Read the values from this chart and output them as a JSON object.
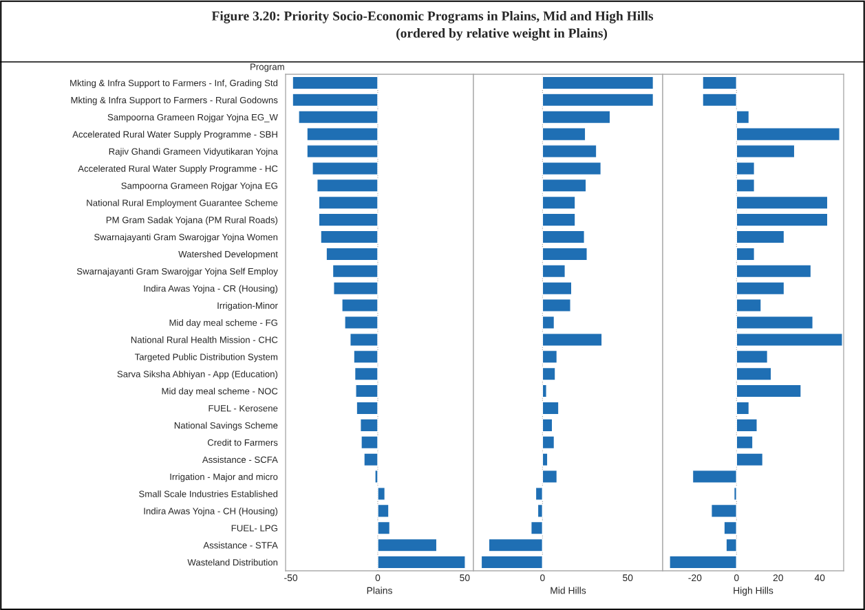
{
  "chart_data": [
    {
      "type": "bar",
      "orientation": "horizontal",
      "title": "Figure 3.20: Priority Socio-Economic Programs in Plains, Mid and High Hills",
      "subtitle": "(ordered by relative weight in Plains)",
      "ylabel": "Program",
      "xlabel": "Plains",
      "categories": [
        "Mkting & Infra Support to Farmers - Inf, Grading Std",
        "Mkting & Infra Support to Farmers - Rural Godowns",
        "Sampoorna Grameen Rojgar Yojna EG_W",
        "Accelerated Rural Water Supply Programme - SBH",
        "Rajiv Ghandi Grameen Vidyutikaran Yojna",
        "Accelerated Rural Water Supply Programme - HC",
        "Sampoorna Grameen Rojgar Yojna EG",
        "National Rural Employment Guarantee Scheme",
        "PM Gram Sadak Yojana (PM Rural Roads)",
        "Swarnajayanti Gram Swarojgar Yojna Women",
        "Watershed Development",
        "Swarnajayanti Gram Swarojgar Yojna Self Employ",
        "Indira Awas Yojna - CR (Housing)",
        "Irrigation-Minor",
        "Mid day meal scheme - FG",
        "National Rural Health Mission - CHC",
        "Targeted Public Distribution System",
        "Sarva Siksha Abhiyan - App (Education)",
        "Mid day meal scheme - NOC",
        "FUEL - Kerosene",
        "National Savings Scheme",
        "Credit to Farmers",
        "Assistance - SCFA",
        "Irrigation - Major and micro",
        "Small Scale Industries Established",
        "Indira Awas Yojna - CH (Housing)",
        "FUEL- LPG",
        "Assistance - STFA",
        "Wasteland Distribution"
      ],
      "values": [
        -49,
        -49,
        -45.5,
        -40.7,
        -40.7,
        -37.6,
        -34.9,
        -33.9,
        -33.9,
        -32.8,
        -29.6,
        -25.9,
        -25.4,
        -20.6,
        -19,
        -15.9,
        -13.8,
        -13.2,
        -12.7,
        -12.2,
        -10,
        -9.5,
        -7.9,
        -1.6,
        4.1,
        6.3,
        6.9,
        33.9,
        50.3
      ],
      "color": "#1f6fb4",
      "xlim": [
        -53,
        55
      ],
      "xticks": [
        -50,
        0,
        50
      ],
      "ref_lines": [
        {
          "axis": "x",
          "value": 0,
          "line_style": "dotted"
        }
      ]
    },
    {
      "type": "bar",
      "orientation": "horizontal",
      "xlabel": "Mid Hills",
      "tick_labels": "x",
      "categories": [
        null,
        null,
        null,
        null,
        null,
        null,
        null,
        null,
        null,
        null,
        null,
        null,
        null,
        null,
        null,
        null,
        null,
        null,
        null,
        null,
        null,
        null,
        null,
        null,
        null,
        null,
        null,
        null,
        null
      ],
      "values": [
        65,
        65,
        39.7,
        25.2,
        31.7,
        34.3,
        25.6,
        19.2,
        19.2,
        24.6,
        26.2,
        13.3,
        17.1,
        16.5,
        6.9,
        34.9,
        8.5,
        7.5,
        2.4,
        9.5,
        5.8,
        6.9,
        3,
        8.5,
        -4,
        -2.8,
        -6.7,
        -31.5,
        -35.9
      ],
      "color": "#1f6fb4",
      "xlim": [
        -40.5,
        70.5
      ],
      "xticks": [
        0,
        50
      ],
      "ref_lines": [
        {
          "axis": "x",
          "value": 0,
          "line_style": "dotted"
        }
      ]
    },
    {
      "type": "bar",
      "orientation": "horizontal",
      "xlabel": "High Hills",
      "tick_labels": "x",
      "categories": [
        null,
        null,
        null,
        null,
        null,
        null,
        null,
        null,
        null,
        null,
        null,
        null,
        null,
        null,
        null,
        null,
        null,
        null,
        null,
        null,
        null,
        null,
        null,
        null,
        null,
        null,
        null,
        null,
        null
      ],
      "values": [
        -16.3,
        -16.3,
        6,
        49.6,
        27.9,
        8.6,
        8.6,
        43.8,
        43.8,
        22.9,
        8.6,
        35.8,
        22.9,
        11.8,
        36.7,
        50.9,
        14.9,
        16.7,
        31,
        6,
        9.9,
        7.8,
        12.6,
        -21.1,
        -1.2,
        -12.1,
        -6,
        -5,
        -32.2
      ],
      "color": "#1f6fb4",
      "xlim": [
        -35.5,
        51.5
      ],
      "xticks": [
        -20,
        0,
        20,
        40
      ],
      "ref_lines": [
        {
          "axis": "x",
          "value": 0,
          "line_style": "dotted"
        }
      ]
    }
  ]
}
